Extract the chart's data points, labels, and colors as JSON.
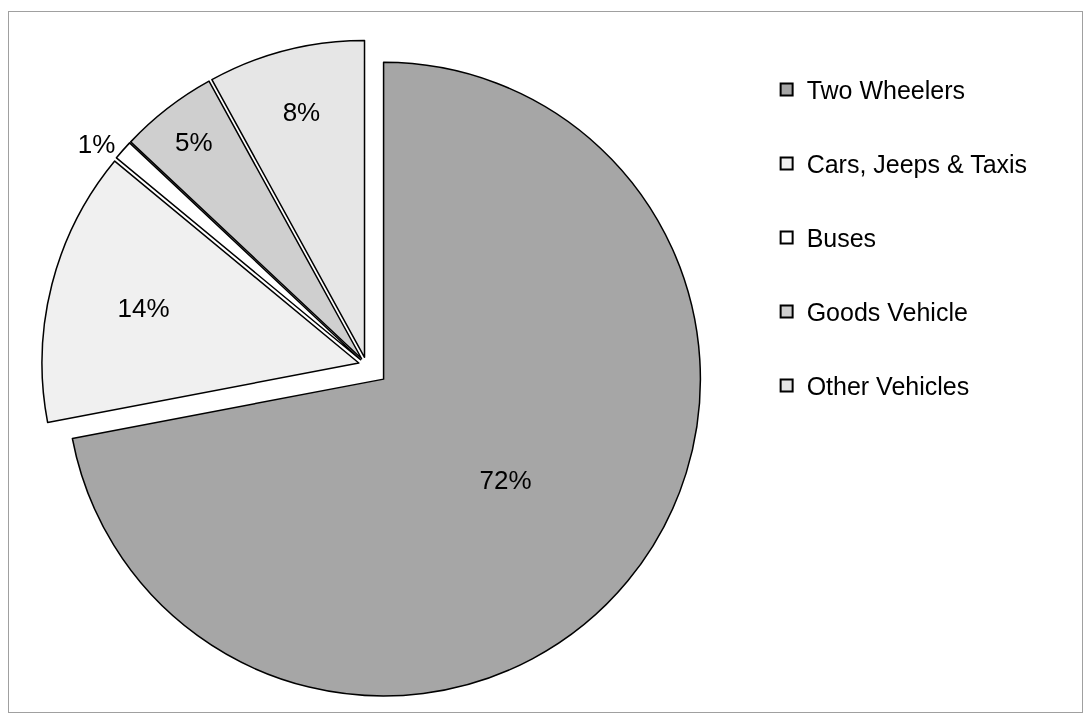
{
  "chart_data": {
    "type": "pie",
    "categories": [
      "Two Wheelers",
      "Cars, Jeeps & Taxis",
      "Buses",
      "Goods Vehicle",
      "Other Vehicles"
    ],
    "values": [
      72,
      14,
      1,
      5,
      8
    ],
    "colors": [
      "#a6a6a6",
      "#f0f0f0",
      "#ffffff",
      "#cfcfcf",
      "#e6e6e6"
    ],
    "value_labels": [
      "72%",
      "14%",
      "1%",
      "5%",
      "8%"
    ],
    "legend": "right"
  }
}
